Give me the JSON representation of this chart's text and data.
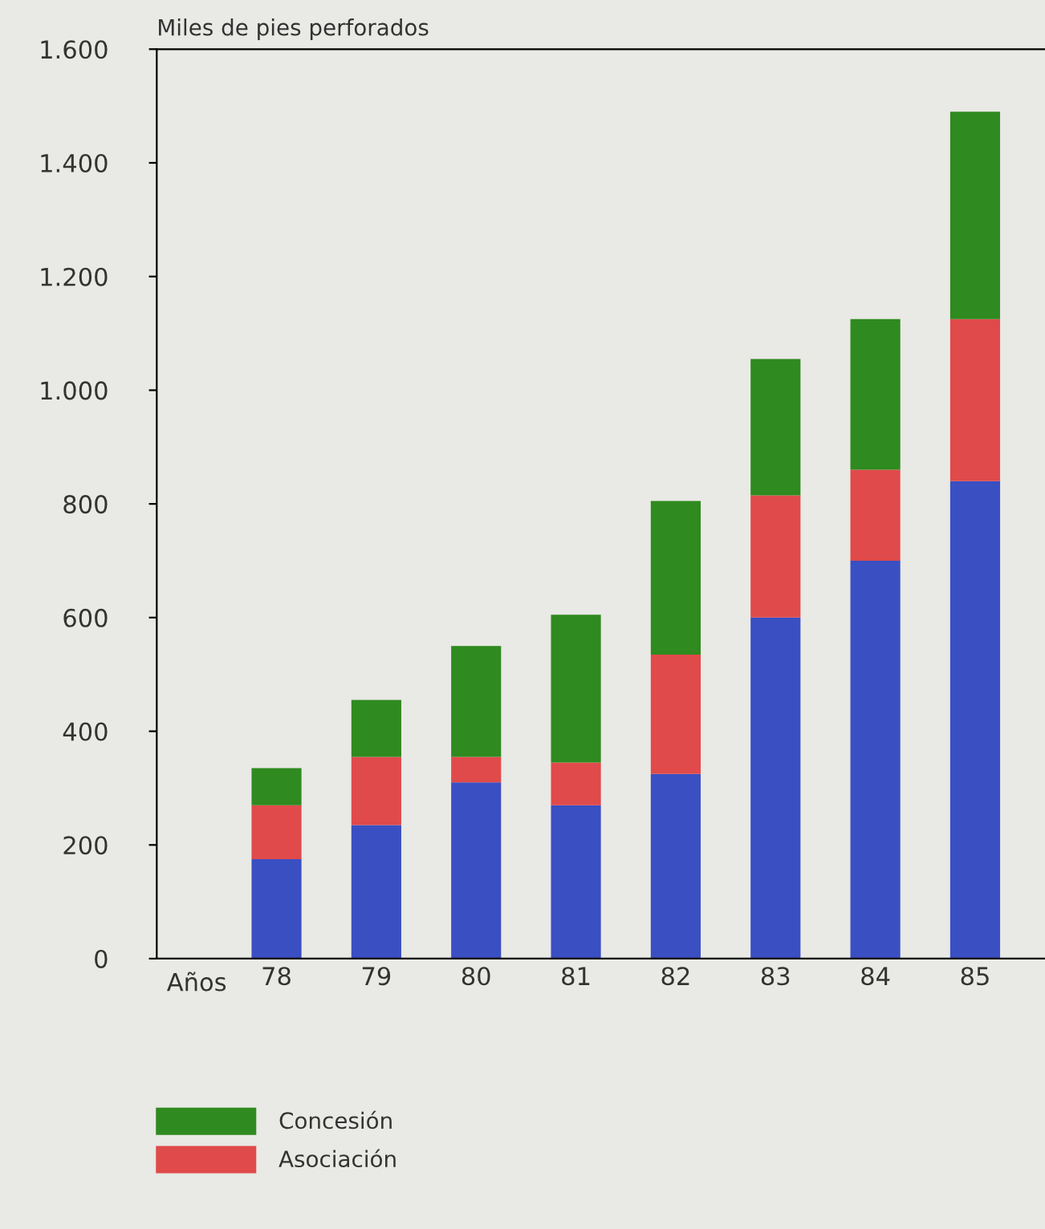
{
  "chart_data": {
    "type": "bar",
    "stacked": true,
    "ylabel": "Miles de pies perforados",
    "xlabel": "Años",
    "categories": [
      "78",
      "79",
      "80",
      "81",
      "82",
      "83",
      "84",
      "85"
    ],
    "series": [
      {
        "color": "#3a4fc2",
        "values": [
          175,
          235,
          310,
          270,
          325,
          600,
          700,
          840
        ]
      },
      {
        "name": "Asociación",
        "color": "#e04a4a",
        "values": [
          95,
          120,
          45,
          75,
          210,
          215,
          160,
          285
        ]
      },
      {
        "name": "Concesión",
        "color": "#2f8a1f",
        "values": [
          65,
          100,
          195,
          260,
          270,
          240,
          265,
          365
        ]
      }
    ],
    "ylim": [
      0,
      1600
    ],
    "yticks": [
      0,
      200,
      400,
      600,
      800,
      {
        "value": 1000,
        "label": "1.000"
      },
      {
        "value": 1200,
        "label": "1.200"
      },
      {
        "value": 1400,
        "label": "1.400"
      },
      {
        "value": 1600,
        "label": "1.600"
      }
    ],
    "grid": false,
    "legend": "bottom"
  }
}
